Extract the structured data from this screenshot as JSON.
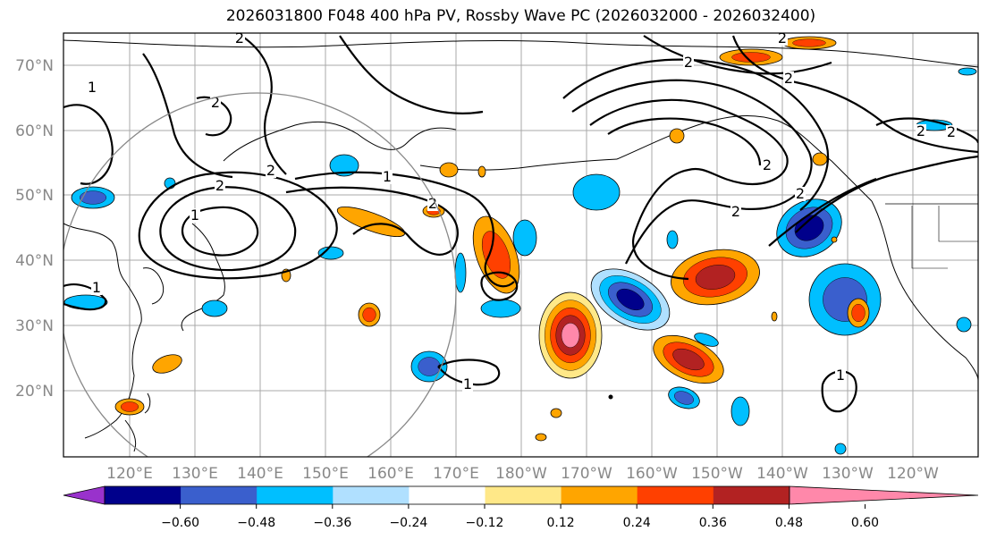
{
  "title": "2026031800 F048 400 hPa PV, Rossby Wave PC (2026032000 - 2026032400)",
  "lat_labels": [
    "70°N",
    "60°N",
    "50°N",
    "40°N",
    "30°N",
    "20°N"
  ],
  "lon_labels": [
    "120°E",
    "130°E",
    "140°E",
    "150°E",
    "160°E",
    "170°E",
    "180°W",
    "170°W",
    "160°W",
    "150°W",
    "140°W",
    "130°W",
    "120°W"
  ],
  "colorbar": {
    "ticks": [
      "−0.60",
      "−0.48",
      "−0.36",
      "−0.24",
      "−0.12",
      "0.12",
      "0.24",
      "0.36",
      "0.48",
      "0.60"
    ],
    "colors": [
      "#9932cc",
      "#00008b",
      "#3a5fcd",
      "#00bfff",
      "#b0e0ff",
      "#ffffff",
      "#ffe888",
      "#ffa500",
      "#ff4000",
      "#b22222",
      "#ff88aa"
    ]
  },
  "contour_labels": [
    "2",
    "2",
    "1",
    "1",
    "2",
    "1",
    "2",
    "1",
    "2",
    "2",
    "2",
    "2",
    "2",
    "2",
    "2",
    "2",
    "1",
    "1",
    "2"
  ],
  "colors": {
    "contour": "#000000",
    "coast": "#000000",
    "grid": "#a8a8a8",
    "circle": "#888888"
  }
}
